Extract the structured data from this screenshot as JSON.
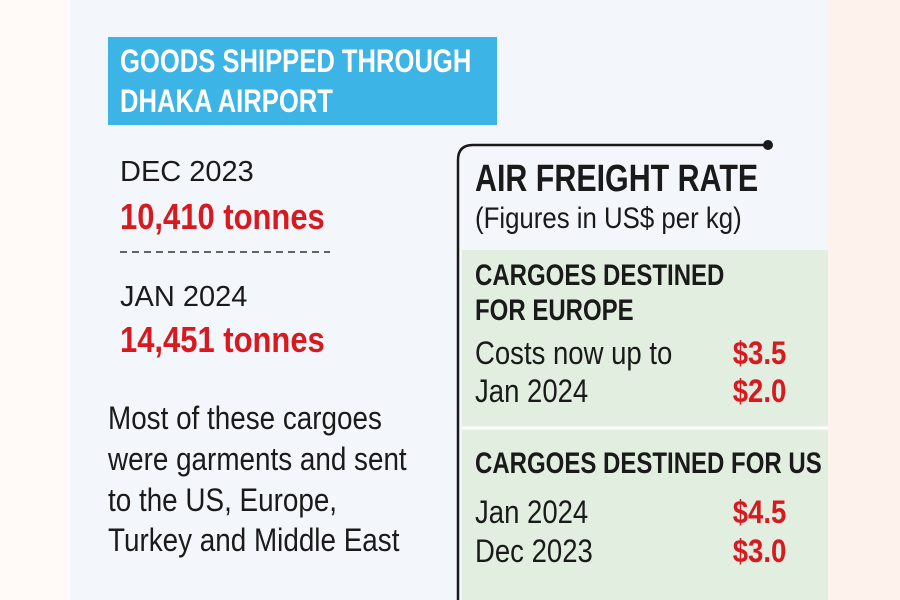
{
  "shipments": {
    "title": [
      "GOODS SHIPPED THROUGH",
      "DHAKA AIRPORT"
    ],
    "entries": [
      {
        "period": "DEC 2023",
        "amount": "10,410 tonnes"
      },
      {
        "period": "JAN 2024",
        "amount": "14,451 tonnes"
      }
    ],
    "note": [
      "Most of these cargoes",
      "were garments and sent",
      "to the US, Europe,",
      "Turkey and Middle East"
    ]
  },
  "freight": {
    "title": "AIR FREIGHT RATE",
    "subtitle": "(Figures in US$ per kg)",
    "sections": [
      {
        "heading": [
          "CARGOES DESTINED",
          "FOR EUROPE"
        ],
        "rows": [
          {
            "label": "Costs now up to",
            "rate": "$3.5"
          },
          {
            "label": "Jan 2024",
            "rate": "$2.0"
          }
        ]
      },
      {
        "heading": [
          "CARGOES DESTINED FOR US"
        ],
        "rows": [
          {
            "label": "Jan 2024",
            "rate": "$4.5"
          },
          {
            "label": "Dec 2023",
            "rate": "$3.0"
          }
        ]
      }
    ]
  }
}
